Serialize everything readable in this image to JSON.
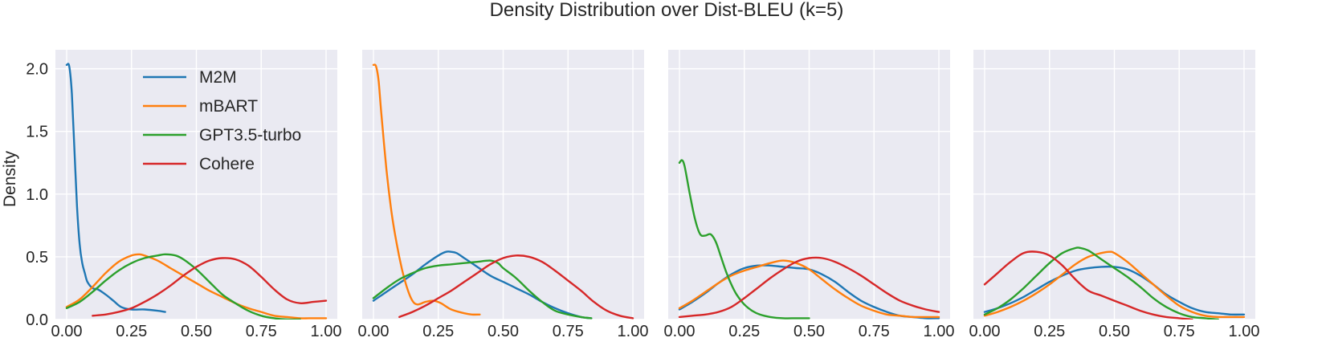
{
  "chart_data": {
    "type": "line",
    "title": "Density Distribution over Dist-BLEU (k=5)",
    "ylabel": "Density",
    "xlim": [
      0,
      1
    ],
    "ylim": [
      0,
      2.1
    ],
    "grid": true,
    "legend_placement": "top-left of first panel",
    "xticks": [
      "0.00",
      "0.25",
      "0.50",
      "0.75",
      "1.00"
    ],
    "yticks": [
      "0.0",
      "0.5",
      "1.0",
      "1.5",
      "2.0"
    ],
    "series_meta": [
      {
        "name": "M2M",
        "color": "#1f77b4"
      },
      {
        "name": "mBART",
        "color": "#ff7f0e"
      },
      {
        "name": "GPT3.5-turbo",
        "color": "#2ca02c"
      },
      {
        "name": "Cohere",
        "color": "#d62728"
      }
    ],
    "panels": [
      {
        "series": [
          {
            "name": "M2M",
            "x": [
              0.0,
              0.01,
              0.02,
              0.03,
              0.04,
              0.05,
              0.06,
              0.07,
              0.08,
              0.1,
              0.12,
              0.15,
              0.18,
              0.21,
              0.25,
              0.3,
              0.35,
              0.38
            ],
            "y": [
              2.03,
              2.02,
              1.8,
              1.35,
              0.9,
              0.6,
              0.45,
              0.37,
              0.3,
              0.25,
              0.24,
              0.2,
              0.15,
              0.1,
              0.08,
              0.08,
              0.07,
              0.06
            ]
          },
          {
            "name": "mBART",
            "x": [
              0.0,
              0.05,
              0.1,
              0.15,
              0.2,
              0.25,
              0.28,
              0.3,
              0.35,
              0.4,
              0.45,
              0.5,
              0.55,
              0.6,
              0.65,
              0.7,
              0.75,
              0.8,
              0.85,
              0.9,
              0.95,
              1.0
            ],
            "y": [
              0.1,
              0.16,
              0.26,
              0.37,
              0.46,
              0.51,
              0.52,
              0.51,
              0.47,
              0.41,
              0.35,
              0.29,
              0.23,
              0.18,
              0.13,
              0.09,
              0.06,
              0.03,
              0.02,
              0.01,
              0.01,
              0.01
            ]
          },
          {
            "name": "GPT3.5-turbo",
            "x": [
              0.0,
              0.05,
              0.1,
              0.15,
              0.2,
              0.25,
              0.3,
              0.35,
              0.38,
              0.42,
              0.45,
              0.5,
              0.55,
              0.6,
              0.65,
              0.7,
              0.75,
              0.8,
              0.85,
              0.9
            ],
            "y": [
              0.09,
              0.14,
              0.22,
              0.31,
              0.39,
              0.45,
              0.49,
              0.51,
              0.52,
              0.51,
              0.48,
              0.4,
              0.3,
              0.2,
              0.13,
              0.07,
              0.03,
              0.01,
              0.0,
              0.0
            ]
          },
          {
            "name": "Cohere",
            "x": [
              0.1,
              0.15,
              0.2,
              0.25,
              0.3,
              0.35,
              0.4,
              0.45,
              0.5,
              0.55,
              0.6,
              0.65,
              0.7,
              0.75,
              0.8,
              0.85,
              0.9,
              0.95,
              1.0
            ],
            "y": [
              0.03,
              0.04,
              0.06,
              0.09,
              0.14,
              0.2,
              0.27,
              0.35,
              0.42,
              0.47,
              0.49,
              0.48,
              0.43,
              0.34,
              0.24,
              0.16,
              0.13,
              0.14,
              0.15
            ]
          }
        ]
      },
      {
        "series": [
          {
            "name": "M2M",
            "x": [
              0.0,
              0.05,
              0.1,
              0.15,
              0.2,
              0.25,
              0.28,
              0.3,
              0.32,
              0.35,
              0.4,
              0.45,
              0.5,
              0.55,
              0.6,
              0.65,
              0.7,
              0.75,
              0.8,
              0.84
            ],
            "y": [
              0.15,
              0.22,
              0.29,
              0.36,
              0.44,
              0.51,
              0.54,
              0.54,
              0.53,
              0.49,
              0.42,
              0.35,
              0.3,
              0.25,
              0.2,
              0.14,
              0.09,
              0.05,
              0.02,
              0.01
            ]
          },
          {
            "name": "mBART",
            "x": [
              0.0,
              0.01,
              0.02,
              0.03,
              0.05,
              0.07,
              0.09,
              0.11,
              0.13,
              0.15,
              0.17,
              0.2,
              0.23,
              0.26,
              0.3,
              0.35,
              0.38,
              0.41
            ],
            "y": [
              2.03,
              2.02,
              1.9,
              1.65,
              1.2,
              0.85,
              0.6,
              0.4,
              0.25,
              0.15,
              0.12,
              0.14,
              0.15,
              0.13,
              0.08,
              0.05,
              0.04,
              0.04
            ]
          },
          {
            "name": "GPT3.5-turbo",
            "x": [
              0.0,
              0.05,
              0.1,
              0.15,
              0.2,
              0.25,
              0.3,
              0.35,
              0.4,
              0.45,
              0.48,
              0.5,
              0.55,
              0.6,
              0.65,
              0.7,
              0.75,
              0.8,
              0.84
            ],
            "y": [
              0.17,
              0.25,
              0.32,
              0.37,
              0.41,
              0.43,
              0.44,
              0.45,
              0.46,
              0.47,
              0.45,
              0.41,
              0.33,
              0.23,
              0.14,
              0.07,
              0.04,
              0.02,
              0.01
            ]
          },
          {
            "name": "Cohere",
            "x": [
              0.1,
              0.15,
              0.2,
              0.25,
              0.3,
              0.35,
              0.4,
              0.45,
              0.5,
              0.55,
              0.6,
              0.65,
              0.7,
              0.75,
              0.8,
              0.85,
              0.9,
              0.95,
              1.0
            ],
            "y": [
              0.02,
              0.06,
              0.11,
              0.17,
              0.23,
              0.3,
              0.37,
              0.44,
              0.49,
              0.51,
              0.5,
              0.46,
              0.39,
              0.31,
              0.23,
              0.14,
              0.07,
              0.03,
              0.01
            ]
          }
        ]
      },
      {
        "series": [
          {
            "name": "M2M",
            "x": [
              0.0,
              0.05,
              0.1,
              0.15,
              0.2,
              0.25,
              0.3,
              0.35,
              0.4,
              0.45,
              0.5,
              0.55,
              0.6,
              0.65,
              0.7,
              0.75,
              0.8,
              0.85,
              0.9,
              0.95,
              1.0
            ],
            "y": [
              0.08,
              0.14,
              0.21,
              0.29,
              0.36,
              0.41,
              0.43,
              0.43,
              0.42,
              0.41,
              0.4,
              0.36,
              0.3,
              0.22,
              0.15,
              0.1,
              0.06,
              0.03,
              0.02,
              0.01,
              0.01
            ]
          },
          {
            "name": "mBART",
            "x": [
              0.0,
              0.05,
              0.1,
              0.15,
              0.2,
              0.25,
              0.3,
              0.35,
              0.4,
              0.45,
              0.5,
              0.55,
              0.6,
              0.65,
              0.7,
              0.75,
              0.8,
              0.85,
              0.9,
              0.95,
              1.0
            ],
            "y": [
              0.09,
              0.15,
              0.22,
              0.29,
              0.35,
              0.39,
              0.42,
              0.45,
              0.47,
              0.45,
              0.4,
              0.32,
              0.24,
              0.17,
              0.11,
              0.07,
              0.04,
              0.03,
              0.02,
              0.02,
              0.02
            ]
          },
          {
            "name": "GPT3.5-turbo",
            "x": [
              0.0,
              0.01,
              0.02,
              0.04,
              0.06,
              0.08,
              0.1,
              0.12,
              0.14,
              0.16,
              0.18,
              0.2,
              0.22,
              0.25,
              0.28,
              0.31,
              0.35,
              0.4,
              0.45,
              0.5
            ],
            "y": [
              1.25,
              1.27,
              1.22,
              1.0,
              0.8,
              0.68,
              0.67,
              0.68,
              0.62,
              0.5,
              0.38,
              0.28,
              0.2,
              0.12,
              0.07,
              0.04,
              0.02,
              0.01,
              0.01,
              0.01
            ]
          },
          {
            "name": "Cohere",
            "x": [
              0.0,
              0.05,
              0.1,
              0.15,
              0.2,
              0.25,
              0.3,
              0.35,
              0.4,
              0.45,
              0.5,
              0.55,
              0.6,
              0.65,
              0.7,
              0.75,
              0.8,
              0.85,
              0.9,
              0.95,
              1.0
            ],
            "y": [
              0.02,
              0.03,
              0.04,
              0.06,
              0.1,
              0.17,
              0.25,
              0.33,
              0.4,
              0.46,
              0.49,
              0.49,
              0.46,
              0.41,
              0.35,
              0.28,
              0.21,
              0.15,
              0.11,
              0.08,
              0.06
            ]
          }
        ]
      },
      {
        "series": [
          {
            "name": "M2M",
            "x": [
              0.0,
              0.05,
              0.1,
              0.15,
              0.2,
              0.25,
              0.3,
              0.35,
              0.4,
              0.45,
              0.5,
              0.55,
              0.6,
              0.65,
              0.7,
              0.75,
              0.8,
              0.85,
              0.9,
              0.95,
              1.0
            ],
            "y": [
              0.06,
              0.09,
              0.13,
              0.18,
              0.24,
              0.3,
              0.35,
              0.39,
              0.41,
              0.42,
              0.42,
              0.4,
              0.35,
              0.28,
              0.2,
              0.14,
              0.09,
              0.06,
              0.05,
              0.04,
              0.04
            ]
          },
          {
            "name": "mBART",
            "x": [
              0.0,
              0.05,
              0.1,
              0.15,
              0.2,
              0.25,
              0.3,
              0.35,
              0.4,
              0.45,
              0.48,
              0.5,
              0.55,
              0.6,
              0.65,
              0.7,
              0.75,
              0.8,
              0.85,
              0.9,
              0.95,
              1.0
            ],
            "y": [
              0.03,
              0.06,
              0.1,
              0.15,
              0.21,
              0.28,
              0.36,
              0.44,
              0.5,
              0.53,
              0.54,
              0.53,
              0.46,
              0.37,
              0.28,
              0.19,
              0.11,
              0.06,
              0.03,
              0.02,
              0.02,
              0.02
            ]
          },
          {
            "name": "GPT3.5-turbo",
            "x": [
              0.0,
              0.05,
              0.1,
              0.15,
              0.2,
              0.25,
              0.3,
              0.35,
              0.37,
              0.4,
              0.45,
              0.5,
              0.55,
              0.6,
              0.65,
              0.7,
              0.75,
              0.8,
              0.85,
              0.9
            ],
            "y": [
              0.04,
              0.09,
              0.16,
              0.25,
              0.35,
              0.45,
              0.53,
              0.57,
              0.57,
              0.55,
              0.48,
              0.41,
              0.34,
              0.26,
              0.17,
              0.1,
              0.05,
              0.02,
              0.01,
              0.0
            ]
          },
          {
            "name": "Cohere",
            "x": [
              0.0,
              0.05,
              0.1,
              0.15,
              0.2,
              0.25,
              0.3,
              0.35,
              0.4,
              0.45,
              0.5,
              0.55,
              0.6,
              0.65,
              0.7,
              0.75,
              0.8
            ],
            "y": [
              0.28,
              0.37,
              0.46,
              0.53,
              0.54,
              0.51,
              0.43,
              0.32,
              0.23,
              0.19,
              0.15,
              0.11,
              0.07,
              0.04,
              0.02,
              0.01,
              0.0
            ]
          }
        ]
      }
    ]
  }
}
